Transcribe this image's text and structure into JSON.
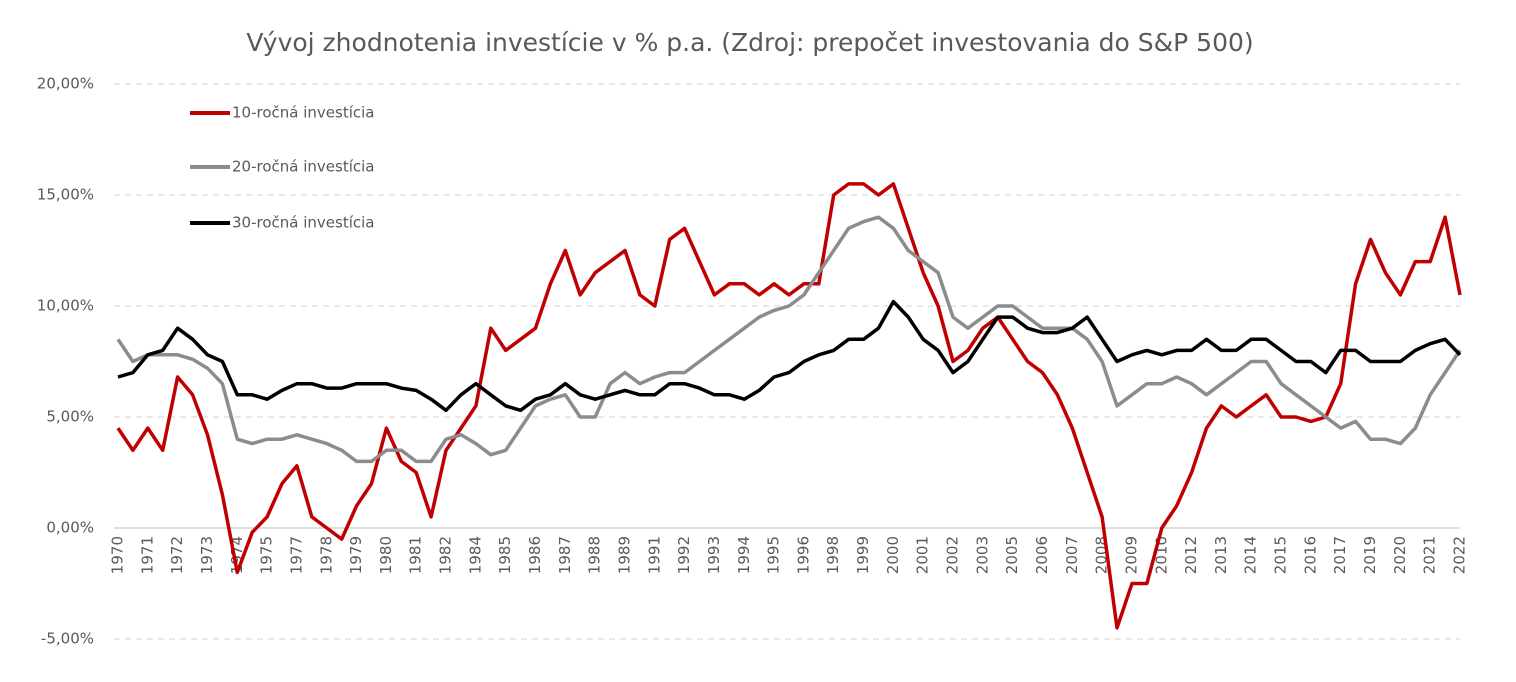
{
  "chart_data": {
    "type": "line",
    "title": "Vývoj zhodnotenia investície v % p.a. (Zdroj: prepočet investovania do S&P 500)",
    "categories": [
      "1970",
      null,
      "1971",
      null,
      "1972",
      null,
      "1973",
      null,
      "1974",
      null,
      "1975",
      null,
      "1977",
      null,
      "1978",
      null,
      "1979",
      null,
      "1980",
      null,
      "1981",
      null,
      "1982",
      null,
      "1984",
      null,
      "1985",
      null,
      "1986",
      null,
      "1987",
      null,
      "1988",
      null,
      "1989",
      null,
      "1991",
      null,
      "1992",
      null,
      "1993",
      null,
      "1994",
      null,
      "1995",
      null,
      "1996",
      null,
      "1998",
      null,
      "1999",
      null,
      "2000",
      null,
      "2001",
      null,
      "2002",
      null,
      "2003",
      null,
      "2005",
      null,
      "2006",
      null,
      "2007",
      null,
      "2008",
      null,
      "2009",
      null,
      "2010",
      null,
      "2012",
      null,
      "2013",
      null,
      "2014",
      null,
      "2015",
      null,
      "2016",
      null,
      "2017",
      null,
      "2019",
      null,
      "2020",
      null,
      "2021",
      null,
      "2022"
    ],
    "series": [
      {
        "name": "10-ročná investícia",
        "color": "#c00000",
        "values": [
          4.5,
          3.5,
          4.5,
          3.5,
          6.8,
          6.0,
          4.2,
          1.5,
          -2.0,
          -0.2,
          0.5,
          2.0,
          2.8,
          0.5,
          0.0,
          -0.5,
          1.0,
          2.0,
          4.5,
          3.0,
          2.5,
          0.5,
          3.5,
          4.5,
          5.5,
          9.0,
          8.0,
          8.5,
          9.0,
          11.0,
          12.5,
          10.5,
          11.5,
          12.0,
          12.5,
          10.5,
          10.0,
          13.0,
          13.5,
          12.0,
          10.5,
          11.0,
          11.0,
          10.5,
          11.0,
          10.5,
          11.0,
          11.0,
          15.0,
          15.5,
          15.5,
          15.0,
          15.5,
          13.5,
          11.5,
          10.0,
          7.5,
          8.0,
          9.0,
          9.5,
          8.5,
          7.5,
          7.0,
          6.0,
          4.5,
          2.5,
          0.5,
          -4.5,
          -2.5,
          -2.5,
          0.0,
          1.0,
          2.5,
          4.5,
          5.5,
          5.0,
          5.5,
          6.0,
          5.0,
          5.0,
          4.8,
          5.0,
          6.5,
          11.0,
          13.0,
          11.5,
          10.5,
          12.0,
          12.0,
          14.0,
          10.5
        ]
      },
      {
        "name": "20-ročná investícia",
        "color": "#8c8c8c",
        "values": [
          8.5,
          7.5,
          7.8,
          7.8,
          7.8,
          7.6,
          7.2,
          6.5,
          4.0,
          3.8,
          4.0,
          4.0,
          4.2,
          4.0,
          3.8,
          3.5,
          3.0,
          3.0,
          3.5,
          3.5,
          3.0,
          3.0,
          4.0,
          4.2,
          3.8,
          3.3,
          3.5,
          4.5,
          5.5,
          5.8,
          6.0,
          5.0,
          5.0,
          6.5,
          7.0,
          6.5,
          6.8,
          7.0,
          7.0,
          7.5,
          8.0,
          8.5,
          9.0,
          9.5,
          9.8,
          10.0,
          10.5,
          11.5,
          12.5,
          13.5,
          13.8,
          14.0,
          13.5,
          12.5,
          12.0,
          11.5,
          9.5,
          9.0,
          9.5,
          10.0,
          10.0,
          9.5,
          9.0,
          9.0,
          9.0,
          8.5,
          7.5,
          5.5,
          6.0,
          6.5,
          6.5,
          6.8,
          6.5,
          6.0,
          6.5,
          7.0,
          7.5,
          7.5,
          6.5,
          6.0,
          5.5,
          5.0,
          4.5,
          4.8,
          4.0,
          4.0,
          3.8,
          4.5,
          6.0,
          7.0,
          8.0
        ]
      },
      {
        "name": "30-ročná investícia",
        "color": "#000000",
        "values": [
          6.8,
          7.0,
          7.8,
          8.0,
          9.0,
          8.5,
          7.8,
          7.5,
          6.0,
          6.0,
          5.8,
          6.2,
          6.5,
          6.5,
          6.3,
          6.3,
          6.5,
          6.5,
          6.5,
          6.3,
          6.2,
          5.8,
          5.3,
          6.0,
          6.5,
          6.0,
          5.5,
          5.3,
          5.8,
          6.0,
          6.5,
          6.0,
          5.8,
          6.0,
          6.2,
          6.0,
          6.0,
          6.5,
          6.5,
          6.3,
          6.0,
          6.0,
          5.8,
          6.2,
          6.8,
          7.0,
          7.5,
          7.8,
          8.0,
          8.5,
          8.5,
          9.0,
          10.2,
          9.5,
          8.5,
          8.0,
          7.0,
          7.5,
          8.5,
          9.5,
          9.5,
          9.0,
          8.8,
          8.8,
          9.0,
          9.5,
          8.5,
          7.5,
          7.8,
          8.0,
          7.8,
          8.0,
          8.0,
          8.5,
          8.0,
          8.0,
          8.5,
          8.5,
          8.0,
          7.5,
          7.5,
          7.0,
          8.0,
          8.0,
          7.5,
          7.5,
          7.5,
          8.0,
          8.3,
          8.5,
          7.8
        ]
      }
    ],
    "ylim": [
      -5,
      20
    ],
    "yticks": [
      {
        "value": -5,
        "label": "-5,00%"
      },
      {
        "value": 0,
        "label": "0,00%"
      },
      {
        "value": 5,
        "label": "5,00%"
      },
      {
        "value": 10,
        "label": "10,00%"
      },
      {
        "value": 15,
        "label": "15,00%"
      },
      {
        "value": 20,
        "label": "20,00%"
      }
    ],
    "grid": true,
    "legend": "upper-left"
  }
}
